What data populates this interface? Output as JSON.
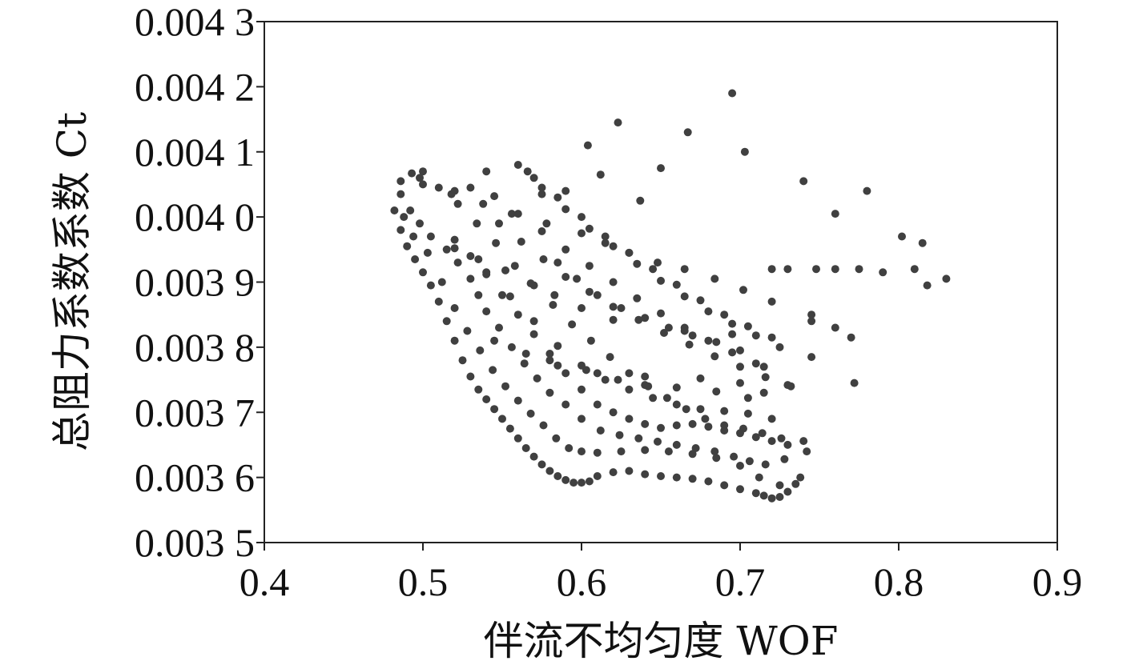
{
  "chart_data": {
    "type": "scatter",
    "title": "",
    "xlabel": "伴流不均匀度 WOF",
    "ylabel": "总阻力系数系数 Ct",
    "xlim": [
      0.4,
      0.9
    ],
    "ylim": [
      0.0035,
      0.0043
    ],
    "x_ticks": [
      0.4,
      0.5,
      0.6,
      0.7,
      0.8,
      0.9
    ],
    "x_tick_labels": [
      "0.4",
      "0.5",
      "0.6",
      "0.7",
      "0.8",
      "0.9"
    ],
    "y_ticks": [
      0.0035,
      0.0036,
      0.0037,
      0.0038,
      0.0039,
      0.004,
      0.0041,
      0.0042,
      0.0043
    ],
    "y_tick_labels": [
      "0.003 5",
      "0.003 6",
      "0.003 7",
      "0.003 8",
      "0.003 9",
      "0.004 0",
      "0.004 1",
      "0.004 2",
      "0.004 3"
    ],
    "grid": false,
    "marker_color": "#404040",
    "series": [
      {
        "x": [
          0.482,
          0.486,
          0.49,
          0.495,
          0.5,
          0.505,
          0.51,
          0.515,
          0.52,
          0.525,
          0.53,
          0.535,
          0.54,
          0.545,
          0.55,
          0.555,
          0.56,
          0.565,
          0.57,
          0.575,
          0.58,
          0.585,
          0.59,
          0.595,
          0.6,
          0.605,
          0.61,
          0.62,
          0.63,
          0.64,
          0.65,
          0.66,
          0.67,
          0.68,
          0.69,
          0.7,
          0.71,
          0.715,
          0.72,
          0.725,
          0.73,
          0.735,
          0.488,
          0.494,
          0.503,
          0.512,
          0.52,
          0.528,
          0.536,
          0.544,
          0.552,
          0.56,
          0.568,
          0.576,
          0.584,
          0.592,
          0.6,
          0.61,
          0.625,
          0.64,
          0.655,
          0.67,
          0.685,
          0.7,
          0.712,
          0.725,
          0.738,
          0.486,
          0.492,
          0.498,
          0.505,
          0.515,
          0.522,
          0.53,
          0.535,
          0.54,
          0.548,
          0.556,
          0.564,
          0.572,
          0.58,
          0.59,
          0.6,
          0.612,
          0.624,
          0.636,
          0.648,
          0.66,
          0.672,
          0.684,
          0.696,
          0.706,
          0.716,
          0.728,
          0.742,
          0.498,
          0.51,
          0.522,
          0.534,
          0.546,
          0.558,
          0.57,
          0.582,
          0.594,
          0.606,
          0.618,
          0.63,
          0.642,
          0.654,
          0.666,
          0.678,
          0.69,
          0.702,
          0.714,
          0.726,
          0.74,
          0.52,
          0.53,
          0.54,
          0.55,
          0.56,
          0.57,
          0.58,
          0.59,
          0.6,
          0.61,
          0.62,
          0.63,
          0.64,
          0.65,
          0.66,
          0.67,
          0.68,
          0.69,
          0.7,
          0.71,
          0.72,
          0.73,
          0.54,
          0.555,
          0.57,
          0.585,
          0.6,
          0.615,
          0.63,
          0.645,
          0.66,
          0.675,
          0.69,
          0.705,
          0.72,
          0.585,
          0.597,
          0.61,
          0.625,
          0.64,
          0.655,
          0.67,
          0.685,
          0.7,
          0.715,
          0.73,
          0.5,
          0.518,
          0.538,
          0.556,
          0.578,
          0.6,
          0.615,
          0.63,
          0.648,
          0.665,
          0.684,
          0.702,
          0.72,
          0.745,
          0.77,
          0.548,
          0.562,
          0.576,
          0.59,
          0.605,
          0.62,
          0.636,
          0.652,
          0.668,
          0.684,
          0.7,
          0.716,
          0.732,
          0.53,
          0.545,
          0.56,
          0.575,
          0.59,
          0.605,
          0.62,
          0.635,
          0.65,
          0.665,
          0.68,
          0.695,
          0.71,
          0.56,
          0.575,
          0.59,
          0.605,
          0.62,
          0.635,
          0.65,
          0.665,
          0.68,
          0.695,
          0.71,
          0.725,
          0.745,
          0.57,
          0.585,
          0.6,
          0.615,
          0.63,
          0.645,
          0.66,
          0.675,
          0.69,
          0.705,
          0.72,
          0.545,
          0.565,
          0.585,
          0.61,
          0.64,
          0.675,
          0.7,
          0.715,
          0.58,
          0.603,
          0.623,
          0.64,
          0.66,
          0.685,
          0.705,
          0.52,
          0.535,
          0.552,
          0.568,
          0.583,
          0.6,
          0.62,
          0.486,
          0.493,
          0.5,
          0.52,
          0.54,
          0.566,
          0.575,
          0.59,
          0.604,
          0.612,
          0.623,
          0.637,
          0.65,
          0.667,
          0.695,
          0.703,
          0.74,
          0.76,
          0.78,
          0.802,
          0.815,
          0.83,
          0.72,
          0.73,
          0.748,
          0.76,
          0.775,
          0.79,
          0.81,
          0.818,
          0.665,
          0.695,
          0.745,
          0.76,
          0.772
        ],
        "y": [
          0.00401,
          0.00398,
          0.003955,
          0.003935,
          0.003915,
          0.003895,
          0.00387,
          0.00384,
          0.00381,
          0.00378,
          0.003755,
          0.003735,
          0.00372,
          0.003705,
          0.00369,
          0.003675,
          0.00366,
          0.003645,
          0.003632,
          0.00362,
          0.00361,
          0.003602,
          0.003596,
          0.003592,
          0.003592,
          0.003594,
          0.003602,
          0.003608,
          0.00361,
          0.003605,
          0.003602,
          0.0036,
          0.003598,
          0.003594,
          0.003588,
          0.003582,
          0.003576,
          0.003572,
          0.003568,
          0.00357,
          0.003578,
          0.00359,
          0.004,
          0.00397,
          0.003945,
          0.0039,
          0.00386,
          0.003825,
          0.003795,
          0.003765,
          0.00374,
          0.003718,
          0.003698,
          0.00368,
          0.00366,
          0.003645,
          0.00364,
          0.003638,
          0.00364,
          0.003642,
          0.00364,
          0.003636,
          0.00363,
          0.003618,
          0.0036,
          0.003588,
          0.0036,
          0.004035,
          0.00401,
          0.00399,
          0.00397,
          0.00395,
          0.00393,
          0.003905,
          0.00388,
          0.003855,
          0.00383,
          0.0038,
          0.003775,
          0.003752,
          0.00373,
          0.003712,
          0.00369,
          0.003672,
          0.003665,
          0.00366,
          0.003655,
          0.00365,
          0.003645,
          0.00364,
          0.003632,
          0.003625,
          0.00362,
          0.003628,
          0.00364,
          0.00406,
          0.004045,
          0.00402,
          0.00399,
          0.00396,
          0.003925,
          0.003895,
          0.003865,
          0.003835,
          0.00381,
          0.003785,
          0.00376,
          0.00374,
          0.003722,
          0.003705,
          0.00369,
          0.00368,
          0.003675,
          0.003668,
          0.00366,
          0.003656,
          0.003965,
          0.00394,
          0.003912,
          0.00388,
          0.00385,
          0.00382,
          0.00379,
          0.00376,
          0.003735,
          0.003712,
          0.0037,
          0.00369,
          0.003682,
          0.003676,
          0.00368,
          0.003682,
          0.003678,
          0.003672,
          0.003668,
          0.003662,
          0.003656,
          0.00365,
          0.003915,
          0.003878,
          0.00384,
          0.003802,
          0.003772,
          0.00375,
          0.003735,
          0.003722,
          0.003712,
          0.003705,
          0.003702,
          0.003698,
          0.00369,
          0.00393,
          0.003905,
          0.00388,
          0.00386,
          0.003845,
          0.00383,
          0.003818,
          0.003808,
          0.003795,
          0.00377,
          0.003742,
          0.00405,
          0.004035,
          0.00402,
          0.004005,
          0.00399,
          0.003975,
          0.00396,
          0.003945,
          0.00393,
          0.00392,
          0.003905,
          0.003888,
          0.00387,
          0.00384,
          0.003815,
          0.00399,
          0.003962,
          0.003935,
          0.003908,
          0.003885,
          0.003862,
          0.003842,
          0.003822,
          0.003804,
          0.003786,
          0.00377,
          0.003754,
          0.00374,
          0.004045,
          0.004032,
          0.004005,
          0.003978,
          0.00395,
          0.003925,
          0.0039,
          0.003875,
          0.003852,
          0.00383,
          0.00381,
          0.003792,
          0.003775,
          0.00408,
          0.004045,
          0.004012,
          0.003982,
          0.003955,
          0.003928,
          0.003902,
          0.003878,
          0.003855,
          0.003836,
          0.003818,
          0.0038,
          0.003785,
          0.00406,
          0.00403,
          0.004,
          0.00397,
          0.003945,
          0.00392,
          0.003896,
          0.003872,
          0.00385,
          0.003832,
          0.003815,
          0.00381,
          0.00379,
          0.003772,
          0.00376,
          0.003755,
          0.003752,
          0.003745,
          0.00373,
          0.00378,
          0.003765,
          0.00375,
          0.003742,
          0.003738,
          0.003732,
          0.003722,
          0.003952,
          0.003935,
          0.003918,
          0.003898,
          0.00388,
          0.00386,
          0.003842,
          0.004055,
          0.004067,
          0.00407,
          0.00404,
          0.00407,
          0.00407,
          0.004035,
          0.00404,
          0.00411,
          0.004065,
          0.004145,
          0.004025,
          0.004075,
          0.00413,
          0.00419,
          0.0041,
          0.004055,
          0.004005,
          0.00404,
          0.00397,
          0.00396,
          0.003905,
          0.00392,
          0.00392,
          0.00392,
          0.00392,
          0.00392,
          0.003915,
          0.00392,
          0.003895,
          0.003825,
          0.00382,
          0.00385,
          0.00383,
          0.003745
        ]
      }
    ]
  }
}
